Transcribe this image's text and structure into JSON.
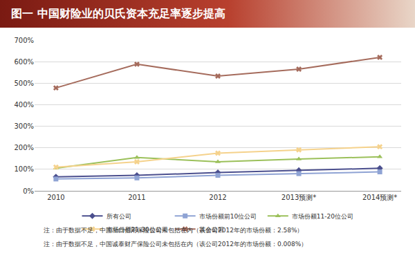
{
  "chart_data": {
    "type": "line",
    "title": "图一 中国财险业的贝氏资本充足率逐步提高",
    "categories": [
      "2010",
      "2011",
      "2012",
      "2013预测*",
      "2014预测*"
    ],
    "series": [
      {
        "name": "所有公司",
        "color": "#4b4f8e",
        "marker": "diamond",
        "values": [
          65,
          72,
          85,
          95,
          105
        ]
      },
      {
        "name": "市场份额前10位公司",
        "color": "#8fa3d4",
        "marker": "square",
        "values": [
          55,
          60,
          72,
          80,
          88
        ]
      },
      {
        "name": "市场份额11-20位公司",
        "color": "#9bc05a",
        "marker": "triangle",
        "values": [
          105,
          155,
          135,
          148,
          158
        ]
      },
      {
        "name": "市场份额21-30位公司",
        "color": "#f5d28c",
        "marker": "x",
        "values": [
          110,
          135,
          175,
          190,
          205
        ]
      },
      {
        "name": "其余公司",
        "color": "#a56b5c",
        "marker": "x",
        "values": [
          478,
          588,
          533,
          565,
          620
        ]
      }
    ],
    "ylim": [
      0,
      700
    ],
    "yticks": [
      {
        "value": 0,
        "label": "0%"
      },
      {
        "value": 100,
        "label": "100%"
      },
      {
        "value": 200,
        "label": "200%"
      },
      {
        "value": 300,
        "label": "300%"
      },
      {
        "value": 400,
        "label": "400%"
      },
      {
        "value": 500,
        "label": "500%"
      },
      {
        "value": 600,
        "label": "600%"
      },
      {
        "value": 700,
        "label": "700%"
      }
    ],
    "grid": true,
    "legend": "bottom",
    "annotations": [
      "注：由于数据不足，中国出口信用保险公司未包括在内（该公司2012年的市场份额：2.58%）",
      "注：由于数据不足，中国诚泰财产保险公司未包括在内（该公司2012年的市场份额：0.008%）"
    ]
  }
}
